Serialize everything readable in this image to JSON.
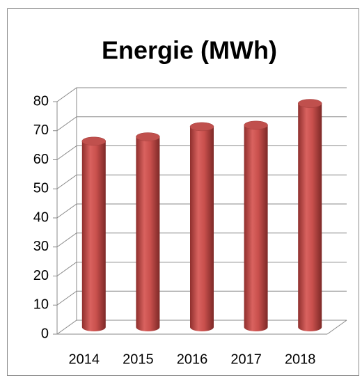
{
  "chart_data": {
    "type": "bar3d",
    "title": "Energie (MWh)",
    "categories": [
      "2014",
      "2015",
      "2016",
      "2017",
      "2018"
    ],
    "values": [
      64,
      65.5,
      69,
      69.5,
      77
    ],
    "color": "#c0504d",
    "ylim": [
      0,
      80
    ],
    "yticks": [
      0,
      10,
      20,
      30,
      40,
      50,
      60,
      70,
      80
    ],
    "grid": true
  }
}
